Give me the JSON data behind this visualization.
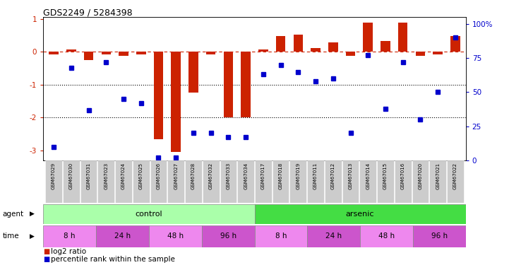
{
  "title": "GDS2249 / 5284398",
  "samples": [
    "GSM67029",
    "GSM67030",
    "GSM67031",
    "GSM67023",
    "GSM67024",
    "GSM67025",
    "GSM67026",
    "GSM67027",
    "GSM67028",
    "GSM67032",
    "GSM67033",
    "GSM67034",
    "GSM67017",
    "GSM67018",
    "GSM67019",
    "GSM67011",
    "GSM67012",
    "GSM67013",
    "GSM67014",
    "GSM67015",
    "GSM67016",
    "GSM67020",
    "GSM67021",
    "GSM67022"
  ],
  "log2_ratio": [
    -0.07,
    0.08,
    -0.25,
    -0.08,
    -0.12,
    -0.08,
    -2.65,
    -3.05,
    -1.25,
    -0.08,
    -2.0,
    -2.0,
    0.08,
    0.48,
    0.52,
    0.12,
    0.28,
    -0.12,
    0.88,
    0.32,
    0.88,
    -0.12,
    -0.08,
    0.48
  ],
  "percentile": [
    10,
    68,
    37,
    72,
    45,
    42,
    2,
    2,
    20,
    20,
    17,
    17,
    63,
    70,
    65,
    58,
    60,
    20,
    77,
    38,
    72,
    30,
    50,
    90
  ],
  "agent_groups": [
    {
      "label": "control",
      "start": 0,
      "end": 12,
      "color": "#aaffaa"
    },
    {
      "label": "arsenic",
      "start": 12,
      "end": 24,
      "color": "#44dd44"
    }
  ],
  "time_groups": [
    {
      "label": "8 h",
      "start": 0,
      "end": 3,
      "color": "#ee88ee"
    },
    {
      "label": "24 h",
      "start": 3,
      "end": 6,
      "color": "#cc55cc"
    },
    {
      "label": "48 h",
      "start": 6,
      "end": 9,
      "color": "#ee88ee"
    },
    {
      "label": "96 h",
      "start": 9,
      "end": 12,
      "color": "#cc55cc"
    },
    {
      "label": "8 h",
      "start": 12,
      "end": 15,
      "color": "#ee88ee"
    },
    {
      "label": "24 h",
      "start": 15,
      "end": 18,
      "color": "#cc55cc"
    },
    {
      "label": "48 h",
      "start": 18,
      "end": 21,
      "color": "#ee88ee"
    },
    {
      "label": "96 h",
      "start": 21,
      "end": 24,
      "color": "#cc55cc"
    }
  ],
  "bar_color": "#cc2200",
  "dot_color": "#0000cc",
  "ylim_left": [
    -3.3,
    1.05
  ],
  "ylim_right": [
    0,
    105
  ],
  "yticks_left": [
    -3,
    -2,
    -1,
    0,
    1
  ],
  "yticks_right": [
    0,
    25,
    50,
    75,
    100
  ],
  "yticklabels_right": [
    "0",
    "25",
    "50",
    "75",
    "100%"
  ],
  "bg_color": "#ffffff"
}
